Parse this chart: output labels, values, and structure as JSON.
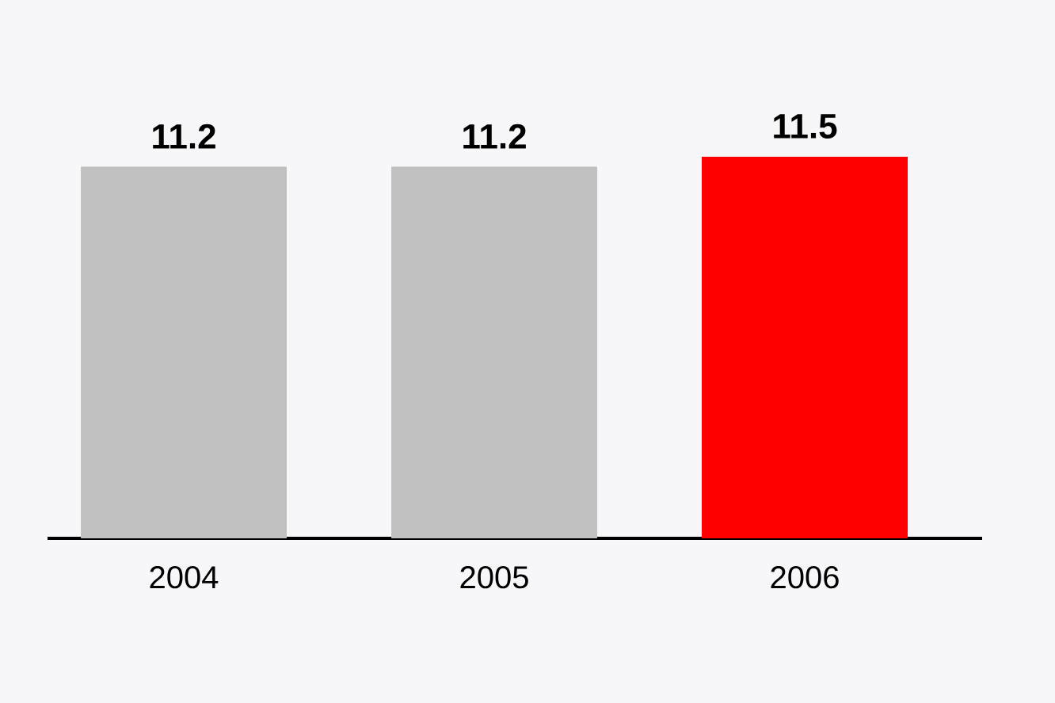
{
  "chart_data": {
    "type": "bar",
    "categories": [
      "2004",
      "2005",
      "2006"
    ],
    "values": [
      11.2,
      11.2,
      11.5
    ],
    "colors": [
      "#c0c0c0",
      "#c0c0c0",
      "#ff0000"
    ],
    "data_labels": true
  }
}
